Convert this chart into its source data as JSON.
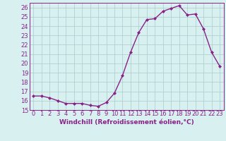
{
  "x": [
    0,
    1,
    2,
    3,
    4,
    5,
    6,
    7,
    8,
    9,
    10,
    11,
    12,
    13,
    14,
    15,
    16,
    17,
    18,
    19,
    20,
    21,
    22,
    23
  ],
  "y": [
    16.5,
    16.5,
    16.3,
    16.0,
    15.7,
    15.7,
    15.7,
    15.5,
    15.4,
    15.8,
    16.8,
    18.7,
    21.2,
    23.3,
    24.7,
    24.8,
    25.6,
    25.9,
    26.2,
    25.2,
    25.3,
    23.7,
    21.2,
    19.7
  ],
  "line_color": "#882288",
  "marker": "D",
  "marker_size": 2.0,
  "line_width": 1.0,
  "bg_color": "#d8f0f0",
  "grid_color": "#aacccc",
  "xlabel": "Windchill (Refroidissement éolien,°C)",
  "xlabel_fontsize": 6.5,
  "tick_fontsize": 6.0,
  "ylim": [
    15,
    26.5
  ],
  "yticks": [
    15,
    16,
    17,
    18,
    19,
    20,
    21,
    22,
    23,
    24,
    25,
    26
  ],
  "xlim": [
    -0.5,
    23.5
  ],
  "xticks": [
    0,
    1,
    2,
    3,
    4,
    5,
    6,
    7,
    8,
    9,
    10,
    11,
    12,
    13,
    14,
    15,
    16,
    17,
    18,
    19,
    20,
    21,
    22,
    23
  ]
}
